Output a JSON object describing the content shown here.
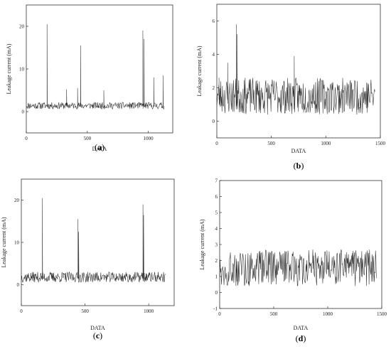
{
  "chart_data": [
    {
      "type": "line",
      "panel_label": "a",
      "xlabel": "DATA",
      "ylabel": "Leakage current (mA)",
      "xlim": [
        0,
        1200
      ],
      "ylim": [
        -5,
        25
      ],
      "xticks": [
        0,
        500,
        1000
      ],
      "yticks": [
        0,
        10,
        20
      ],
      "baseline": [
        0.6,
        2.2
      ],
      "spikes": [
        [
          170,
          20.5
        ],
        [
          330,
          5.2
        ],
        [
          420,
          5.5
        ],
        [
          445,
          15.5
        ],
        [
          635,
          5.0
        ],
        [
          955,
          19.0
        ],
        [
          965,
          17.0
        ],
        [
          1045,
          8.0
        ],
        [
          1120,
          8.5
        ]
      ],
      "n_points": 1130
    },
    {
      "type": "line",
      "panel_label": "b",
      "xlabel": "DATA",
      "ylabel": "Leakage current (mA)",
      "xlim": [
        0,
        1500
      ],
      "ylim": [
        -1,
        7
      ],
      "xticks": [
        0,
        500,
        1000,
        1500
      ],
      "yticks": [
        0,
        2,
        4,
        6
      ],
      "baseline": [
        0.4,
        2.6
      ],
      "spikes": [
        [
          20,
          2.6
        ],
        [
          100,
          3.5
        ],
        [
          180,
          5.8
        ],
        [
          185,
          5.2
        ],
        [
          710,
          3.9
        ]
      ],
      "n_points": 1450
    },
    {
      "type": "line",
      "panel_label": "c",
      "xlabel": "DATA",
      "ylabel": "Leakage current (mA)",
      "xlim": [
        0,
        1200
      ],
      "ylim": [
        -5,
        25
      ],
      "xticks": [
        0,
        500,
        1000
      ],
      "yticks": [
        0,
        10,
        20
      ],
      "baseline": [
        0.5,
        3.0
      ],
      "spikes": [
        [
          165,
          20.5
        ],
        [
          445,
          15.5
        ],
        [
          450,
          12.5
        ],
        [
          955,
          19.0
        ],
        [
          960,
          16.5
        ]
      ],
      "n_points": 1130
    },
    {
      "type": "line",
      "panel_label": "d",
      "xlabel": "DATA",
      "ylabel": "Leakage current (mA)",
      "xlim": [
        0,
        1500
      ],
      "ylim": [
        -1,
        7
      ],
      "xticks": [
        0,
        500,
        1000,
        1500
      ],
      "yticks": [
        -1,
        0,
        1,
        2,
        3,
        4,
        5,
        6,
        7
      ],
      "baseline": [
        0.4,
        2.7
      ],
      "spikes": [],
      "n_points": 1450
    }
  ]
}
